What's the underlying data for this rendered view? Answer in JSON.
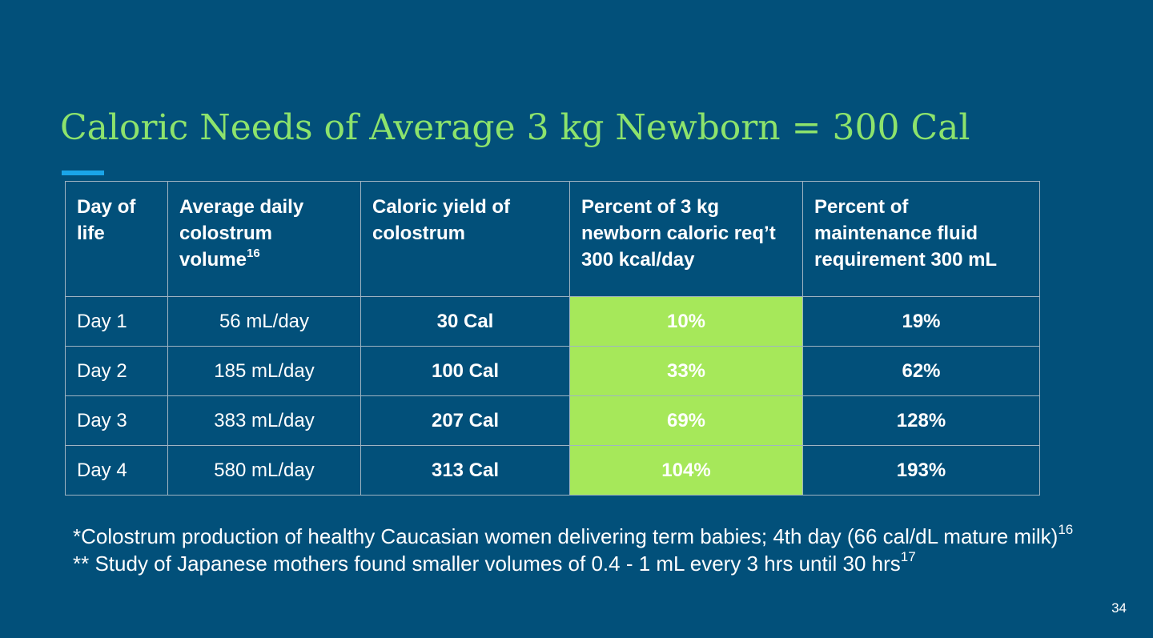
{
  "slide": {
    "title": "Caloric Needs of Average 3 kg Newborn = 300 Cal",
    "page_number": "34",
    "colors": {
      "background": "#02507a",
      "title": "#8de36c",
      "accent_bar": "#1aa5e8",
      "highlight_column": "#a6e85a"
    }
  },
  "table": {
    "headers": [
      {
        "text": "Day of life",
        "sup": ""
      },
      {
        "text": "Average daily colostrum volume",
        "sup": "16"
      },
      {
        "text": "Caloric yield of colostrum",
        "sup": ""
      },
      {
        "text": "Percent of 3 kg newborn caloric req’t 300 kcal/day",
        "sup": ""
      },
      {
        "text": "Percent of maintenance fluid requirement 300 mL",
        "sup": ""
      }
    ],
    "rows": [
      {
        "day": "Day 1",
        "volume": "56 mL/day",
        "calories": "30 Cal",
        "percent_caloric": "10%",
        "percent_fluid": "19%"
      },
      {
        "day": "Day 2",
        "volume": "185 mL/day",
        "calories": "100 Cal",
        "percent_caloric": "33%",
        "percent_fluid": "62%"
      },
      {
        "day": "Day 3",
        "volume": "383 mL/day",
        "calories": "207 Cal",
        "percent_caloric": "69%",
        "percent_fluid": "128%"
      },
      {
        "day": "Day 4",
        "volume": "580 mL/day",
        "calories": "313 Cal",
        "percent_caloric": "104%",
        "percent_fluid": "193%"
      }
    ]
  },
  "notes": {
    "line1": "*Colostrum production of healthy Caucasian women delivering term babies; 4th day (66 cal/dL mature milk)",
    "line1_sup": "16",
    "line2": "** Study of Japanese mothers found smaller volumes of 0.4 - 1 mL every 3 hrs until 30 hrs",
    "line2_sup": "17"
  }
}
